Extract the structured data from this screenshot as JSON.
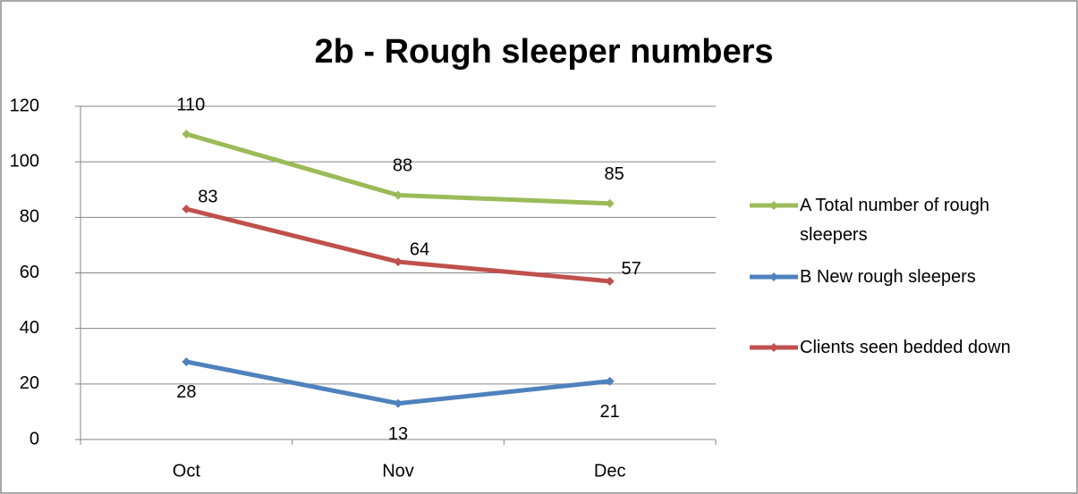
{
  "chart_data": {
    "type": "line",
    "title": "2b - Rough sleeper numbers",
    "categories": [
      "Oct",
      "Nov",
      "Dec"
    ],
    "series": [
      {
        "name": "A Total number of rough sleepers",
        "color": "#9bbb59",
        "values": [
          110,
          88,
          85
        ]
      },
      {
        "name": "B New rough sleepers",
        "color": "#4f81bd",
        "values": [
          28,
          13,
          21
        ]
      },
      {
        "name": "Clients seen bedded down",
        "color": "#c0504d",
        "values": [
          83,
          64,
          57
        ]
      }
    ],
    "ylim": [
      0,
      120
    ],
    "yticks": [
      0,
      20,
      40,
      60,
      80,
      100,
      120
    ],
    "grid": true,
    "legend": "right"
  }
}
